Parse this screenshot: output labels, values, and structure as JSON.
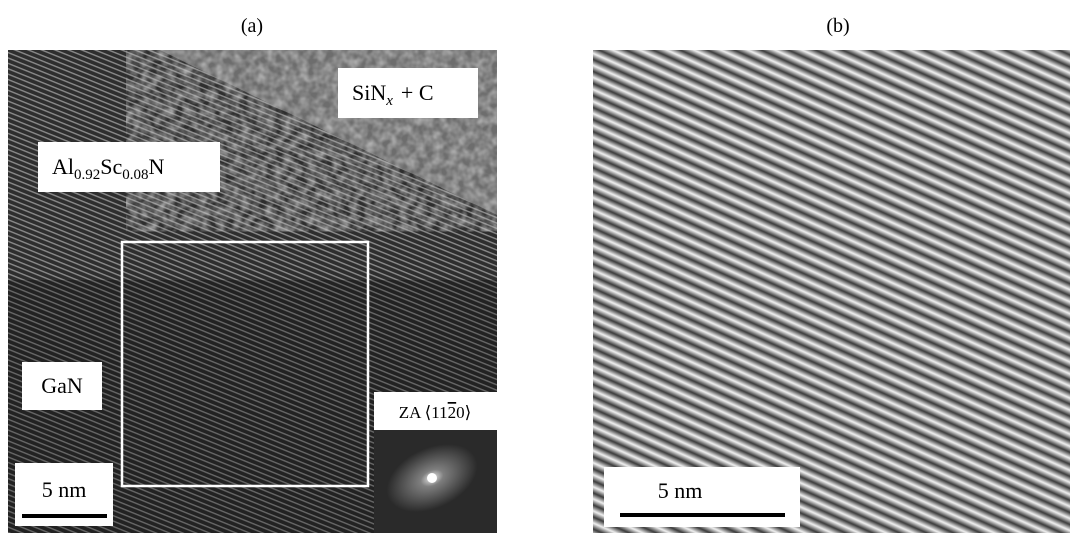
{
  "panel_a": {
    "label": "(a)",
    "matrix_label": {
      "base": "SiN",
      "sub": "x",
      "rest": "+ C"
    },
    "layer_label": {
      "el1": "Al",
      "sub1": "0.92",
      "el2": "Sc",
      "sub2": "0.08",
      "el3": "N"
    },
    "substrate_label": "GaN",
    "scale_bar": "5 nm",
    "zone_axis": {
      "prefix": "ZA ⟨11",
      "overlined": "2",
      "suffix": "0⟩"
    }
  },
  "panel_b": {
    "label": "(b)",
    "scale_bar": "5 nm"
  }
}
